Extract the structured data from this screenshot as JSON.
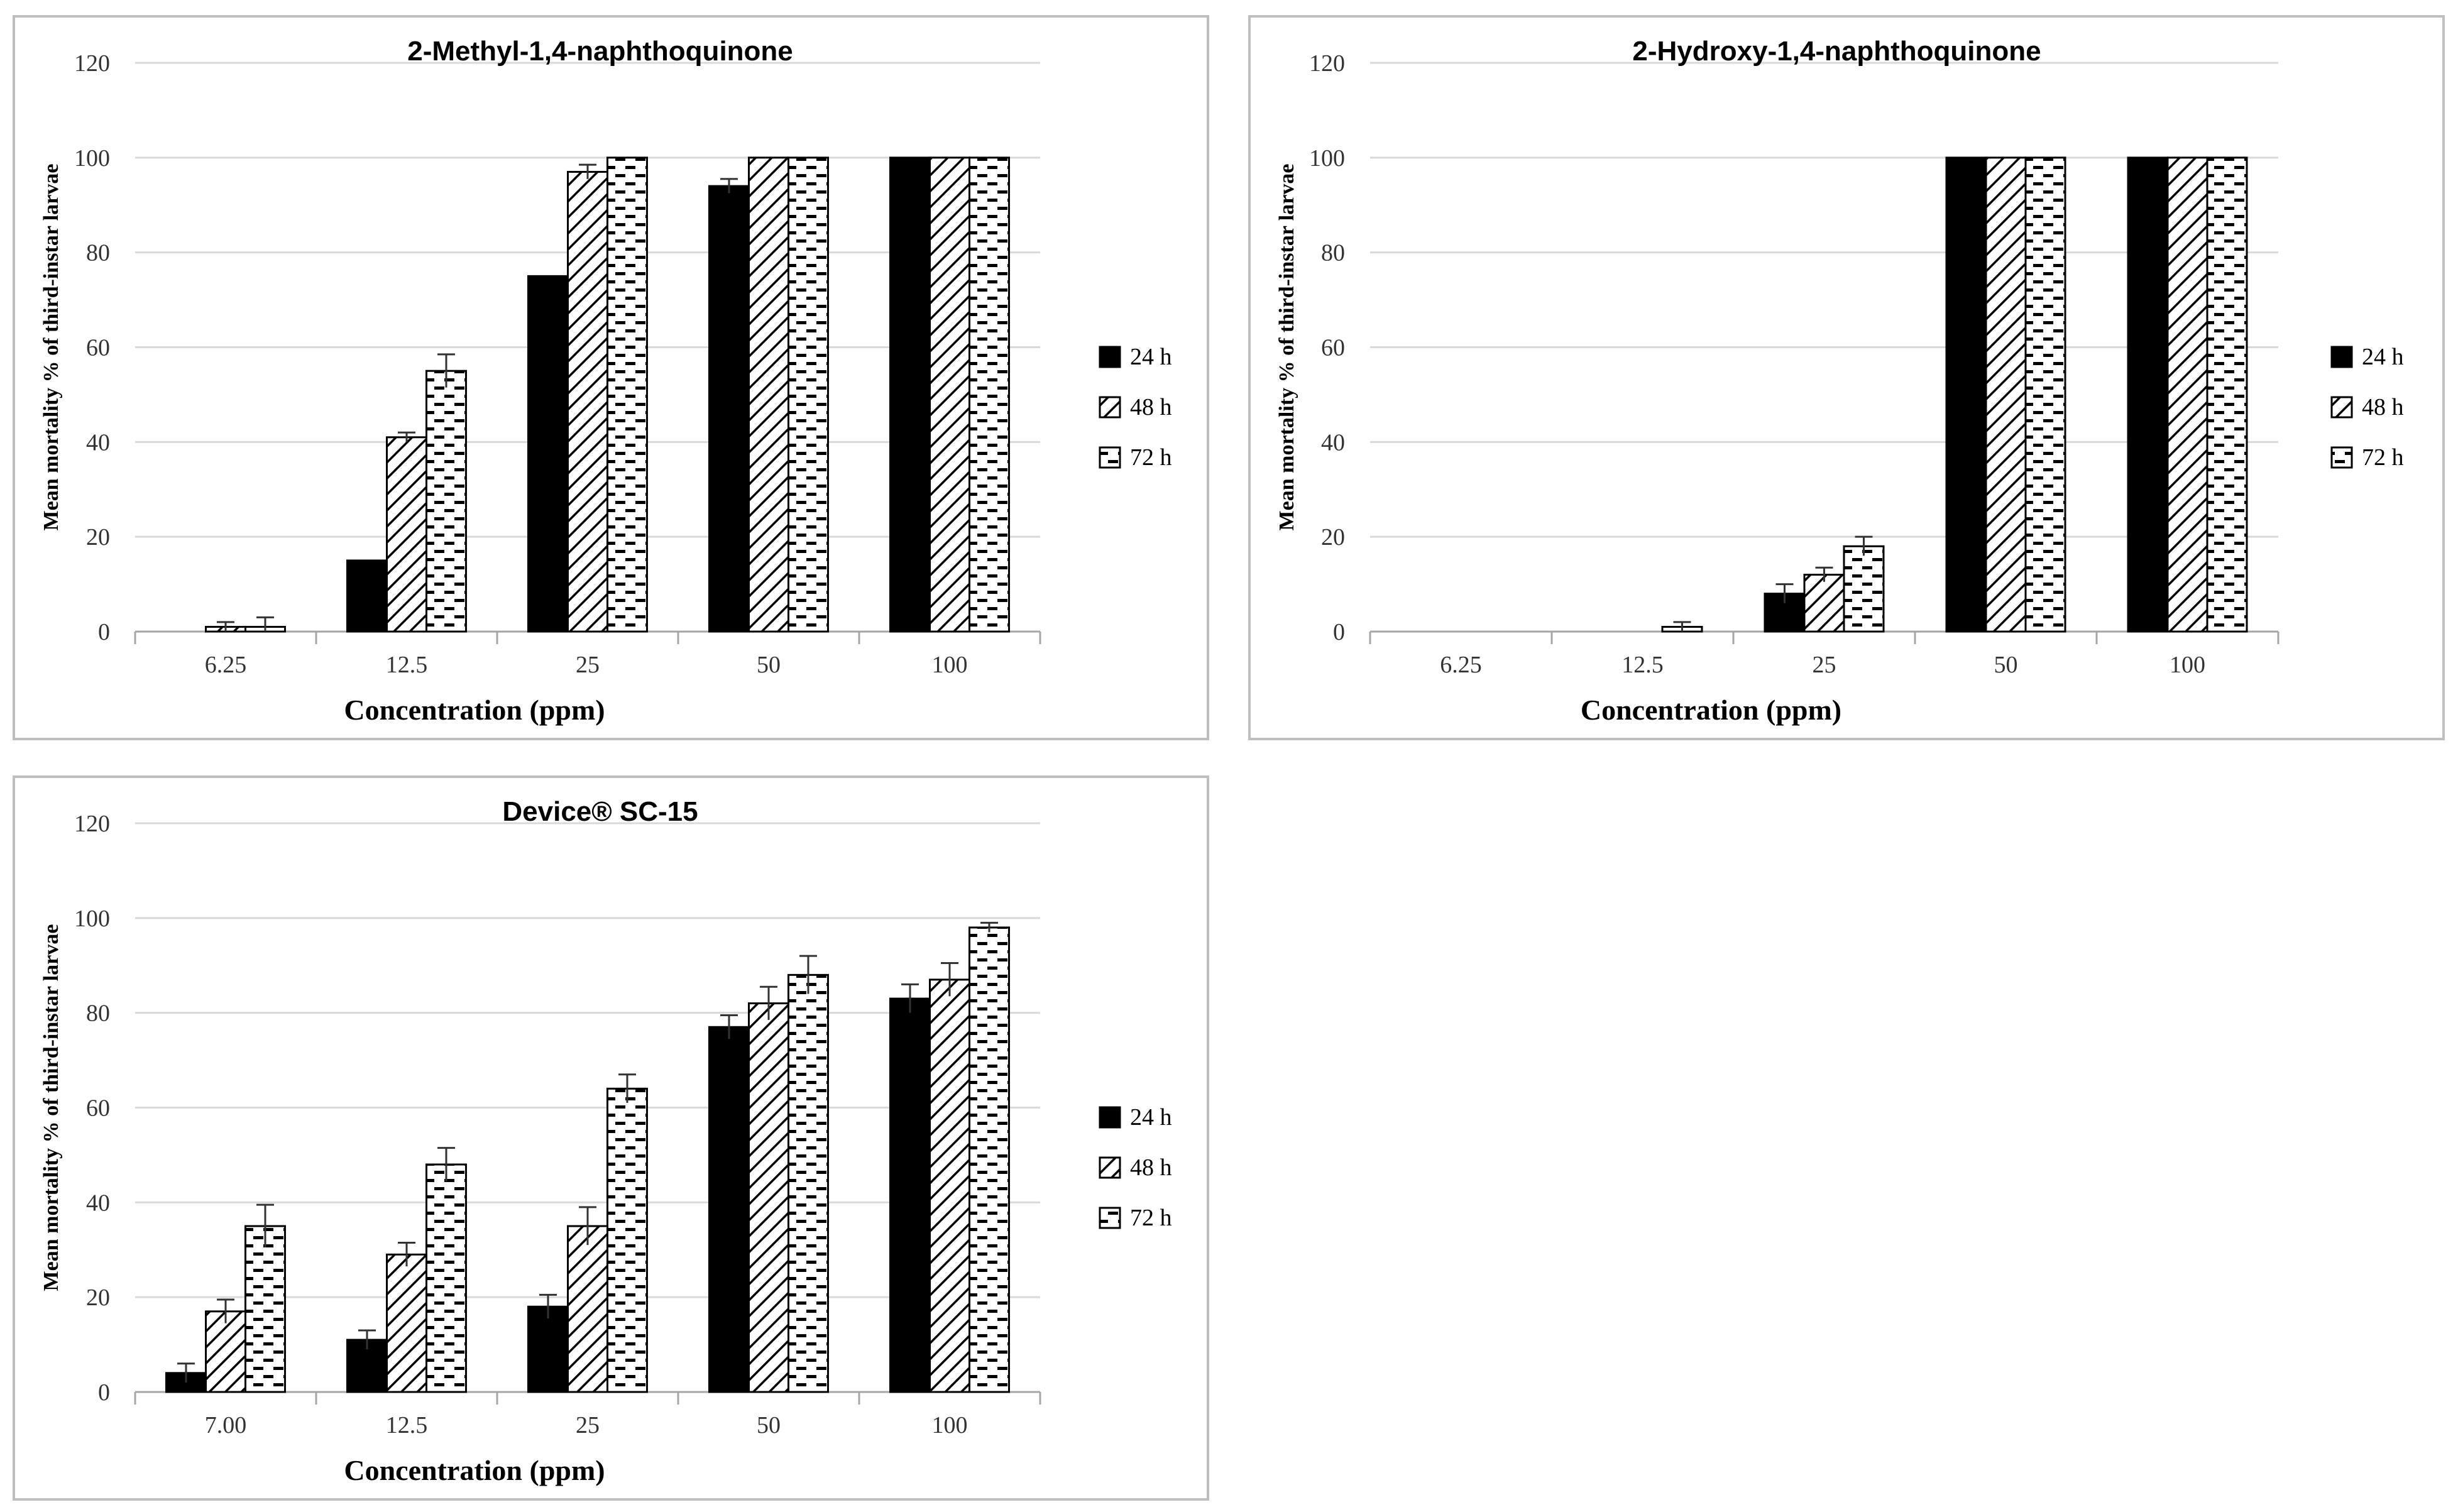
{
  "chart_data": [
    {
      "type": "bar",
      "title": "2-Methyl-1,4-naphthoquinone",
      "xlabel": "Concentration (ppm)",
      "ylabel": "Mean mortality % of third-instar larvae",
      "ylim": [
        0,
        120
      ],
      "yticks": [
        0,
        20,
        40,
        60,
        80,
        100,
        120
      ],
      "grid": true,
      "legend": "right",
      "categories": [
        "6.25",
        "12.5",
        "25",
        "50",
        "100"
      ],
      "series": [
        {
          "name": "24 h",
          "values": [
            0,
            15,
            75,
            94,
            100
          ],
          "errors": [
            0,
            0,
            0,
            1.5,
            0
          ]
        },
        {
          "name": "48 h",
          "values": [
            1,
            41,
            97,
            100,
            100
          ],
          "errors": [
            1,
            1,
            1.5,
            0,
            0
          ]
        },
        {
          "name": "72 h",
          "values": [
            1,
            55,
            100,
            100,
            100
          ],
          "errors": [
            2,
            3.5,
            0,
            0,
            0
          ]
        }
      ]
    },
    {
      "type": "bar",
      "title": "2-Hydroxy-1,4-naphthoquinone",
      "xlabel": "Concentration (ppm)",
      "ylabel": "Mean mortality % of third-instar larvae",
      "ylim": [
        0,
        120
      ],
      "yticks": [
        0,
        20,
        40,
        60,
        80,
        100,
        120
      ],
      "grid": true,
      "legend": "right",
      "categories": [
        "6.25",
        "12.5",
        "25",
        "50",
        "100"
      ],
      "series": [
        {
          "name": "24 h",
          "values": [
            0,
            0,
            8,
            100,
            100
          ],
          "errors": [
            0,
            0,
            2,
            0,
            0
          ]
        },
        {
          "name": "48 h",
          "values": [
            0,
            0,
            12,
            100,
            100
          ],
          "errors": [
            0,
            0,
            1.5,
            0,
            0
          ]
        },
        {
          "name": "72 h",
          "values": [
            0,
            1,
            18,
            100,
            100
          ],
          "errors": [
            0,
            1,
            2,
            0,
            0
          ]
        }
      ]
    },
    {
      "type": "bar",
      "title": "Device® SC-15",
      "xlabel": "Concentration (ppm)",
      "ylabel": "Mean mortality % of third-instar larvae",
      "ylim": [
        0,
        120
      ],
      "yticks": [
        0,
        20,
        40,
        60,
        80,
        100,
        120
      ],
      "grid": true,
      "legend": "right",
      "categories": [
        "7.00",
        "12.5",
        "25",
        "50",
        "100"
      ],
      "series": [
        {
          "name": "24 h",
          "values": [
            4,
            11,
            18,
            77,
            83
          ],
          "errors": [
            2,
            2,
            2.5,
            2.5,
            3
          ]
        },
        {
          "name": "48 h",
          "values": [
            17,
            29,
            35,
            82,
            87
          ],
          "errors": [
            2.5,
            2.5,
            4,
            3.5,
            3.5
          ]
        },
        {
          "name": "72 h",
          "values": [
            35,
            48,
            64,
            88,
            98
          ],
          "errors": [
            4.5,
            3.5,
            3,
            4,
            1
          ]
        }
      ]
    }
  ]
}
